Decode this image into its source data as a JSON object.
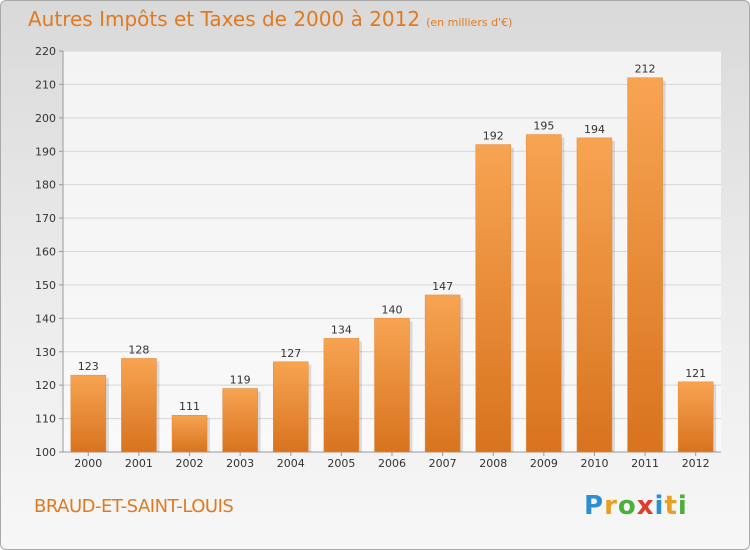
{
  "title": "Autres Impôts et Taxes de 2000 à 2012",
  "subtitle": "(en milliers d'€)",
  "town": "BRAUD-ET-SAINT-LOUIS",
  "logo": {
    "text": "Proxiti",
    "letters": [
      {
        "ch": "P",
        "color": "#2b8fd0"
      },
      {
        "ch": "r",
        "color": "#e8a020"
      },
      {
        "ch": "o",
        "color": "#4cae3c"
      },
      {
        "ch": "x",
        "color": "#e03a2a"
      },
      {
        "ch": "i",
        "color": "#2b8fd0"
      },
      {
        "ch": "t",
        "color": "#e8a020"
      },
      {
        "ch": "i",
        "color": "#4cae3c"
      }
    ]
  },
  "colors": {
    "bar_top": "#f7a452",
    "bar_bottom": "#d8731e",
    "grid": "#d6d6d6",
    "axis_text": "#333333",
    "title": "#e07a20"
  },
  "chart_data": {
    "type": "bar",
    "categories": [
      "2000",
      "2001",
      "2002",
      "2003",
      "2004",
      "2005",
      "2006",
      "2007",
      "2008",
      "2009",
      "2010",
      "2011",
      "2012"
    ],
    "values": [
      123,
      128,
      111,
      119,
      127,
      134,
      140,
      147,
      192,
      195,
      194,
      212,
      121
    ],
    "ylim": [
      100,
      220
    ],
    "yticks": [
      100,
      110,
      120,
      130,
      140,
      150,
      160,
      170,
      180,
      190,
      200,
      210,
      220
    ],
    "grid": true,
    "data_labels": true
  }
}
